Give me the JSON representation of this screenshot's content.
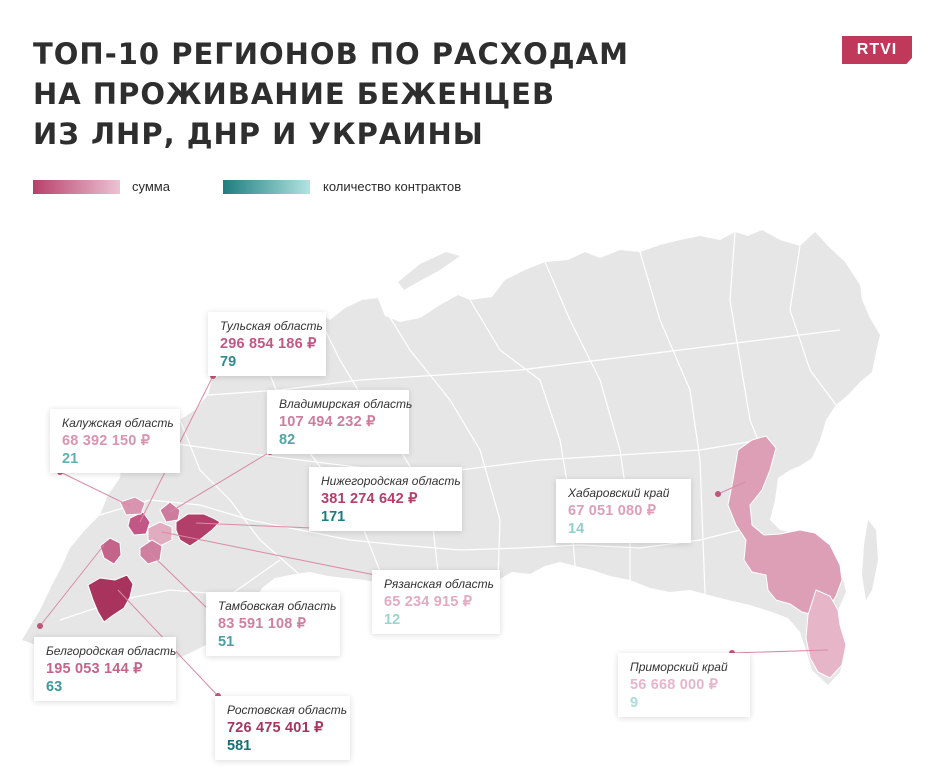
{
  "title_lines": [
    "ТОП-10 РЕГИОНОВ ПО РАСХОДАМ",
    "НА ПРОЖИВАНИЕ БЕЖЕНЦЕВ",
    "ИЗ ЛНР, ДНР И УКРАИНЫ"
  ],
  "logo": "RTVI",
  "legend": {
    "sum_label": "сумма",
    "count_label": "количество контрактов",
    "sum_colors": [
      "#b8406a",
      "#ebc3d3"
    ],
    "count_colors": [
      "#1e7d80",
      "#b2e3e0"
    ]
  },
  "colors": {
    "land": "#e6e6e6",
    "borders": "#ffffff",
    "leader_line": "#d98aa5",
    "dot": "#c0557c"
  },
  "regions": [
    {
      "id": "tula",
      "name": "Тульская область",
      "sum": "296 854 186 ₽",
      "count": "79",
      "sum_color": "#c15784",
      "count_color": "#2f8c8e"
    },
    {
      "id": "vladimir",
      "name": "Владимирская область",
      "sum": "107 494 232 ₽",
      "count": "82",
      "sum_color": "#ce7c9d",
      "count_color": "#4fa3a5"
    },
    {
      "id": "kaluga",
      "name": "Калужская область",
      "sum": "68 392 150 ₽",
      "count": "21",
      "sum_color": "#d994b0",
      "count_color": "#62b1b2"
    },
    {
      "id": "nizhny",
      "name": "Нижегородская область",
      "sum": "381 274 642 ₽",
      "count": "171",
      "sum_color": "#b23f6a",
      "count_color": "#1d7a7d"
    },
    {
      "id": "khabarovsk",
      "name": "Хабаровский край",
      "sum": "67 051 080 ₽",
      "count": "14",
      "sum_color": "#dc9fb6",
      "count_color": "#8fcfcc"
    },
    {
      "id": "ryazan",
      "name": "Рязанская область",
      "sum": "65 234 915 ₽",
      "count": "12",
      "sum_color": "#e1abc0",
      "count_color": "#99d5d2"
    },
    {
      "id": "tambov",
      "name": "Тамбовская область",
      "sum": "83 591 108 ₽",
      "count": "51",
      "sum_color": "#cf7f9f",
      "count_color": "#4b9fa0"
    },
    {
      "id": "belgorod",
      "name": "Белгородская область",
      "sum": "195 053 144 ₽",
      "count": "63",
      "sum_color": "#c4648a",
      "count_color": "#40989a"
    },
    {
      "id": "primorsky",
      "name": "Приморский край",
      "sum": "56 668 000 ₽",
      "count": "9",
      "sum_color": "#e6b6c8",
      "count_color": "#abdcda"
    },
    {
      "id": "rostov",
      "name": "Ростовская область",
      "sum": "726 475 401 ₽",
      "count": "581",
      "sum_color": "#a8345d",
      "count_color": "#167073"
    }
  ]
}
